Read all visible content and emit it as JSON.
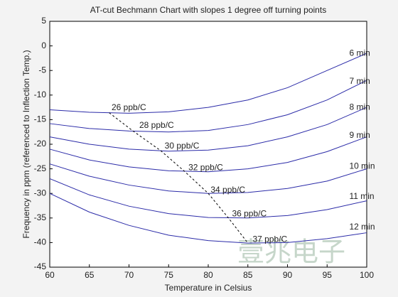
{
  "chart_data": {
    "type": "line",
    "title": "AT-cut Bechmann Chart with slopes 1 degree off turning points",
    "x_label": "Temperature in Celsius",
    "y_label": "Frequency in ppm (referenced to Inflection Temp.)",
    "x": [
      60,
      65,
      70,
      75,
      80,
      85,
      90,
      95,
      100
    ],
    "series": [
      {
        "name": "6 min",
        "color": "#2b2ba8",
        "values": [
          -13,
          -13.5,
          -13.7,
          -13.4,
          -12.5,
          -11,
          -8.5,
          -5,
          -1.5
        ]
      },
      {
        "name": "7 min",
        "color": "#2b2ba8",
        "values": [
          -15.8,
          -16.8,
          -17.3,
          -17.5,
          -17.2,
          -16,
          -14,
          -11,
          -7
        ]
      },
      {
        "name": "8 min",
        "color": "#2b2ba8",
        "values": [
          -18.5,
          -20,
          -21,
          -21.4,
          -21.2,
          -20.3,
          -18.5,
          -16,
          -12.5
        ]
      },
      {
        "name": "9 min",
        "color": "#2b2ba8",
        "values": [
          -21,
          -23.2,
          -24.6,
          -25.4,
          -25.6,
          -25,
          -23.7,
          -21.5,
          -18.5
        ]
      },
      {
        "name": "10 min",
        "color": "#2b2ba8",
        "values": [
          -24,
          -26.5,
          -28.3,
          -29.5,
          -30,
          -29.8,
          -29,
          -27.5,
          -25
        ]
      },
      {
        "name": "11 min",
        "color": "#2b2ba8",
        "values": [
          -27,
          -30.3,
          -32.6,
          -34.1,
          -34.9,
          -35,
          -34.5,
          -33.3,
          -31.5
        ]
      },
      {
        "name": "12 min",
        "color": "#2b2ba8",
        "values": [
          -30,
          -33.8,
          -36.5,
          -38.5,
          -39.6,
          -40.1,
          -40,
          -39.2,
          -38
        ]
      }
    ],
    "turning_line": {
      "color": "#000000",
      "x": [
        67.5,
        70.5,
        74,
        77,
        80,
        82.5,
        85
      ],
      "values": [
        -13.6,
        -17.3,
        -21.3,
        -25.5,
        -30,
        -34.9,
        -40.1
      ]
    },
    "annotations": [
      {
        "text": "26 ppb/C",
        "x": 67.8,
        "y": -12.6
      },
      {
        "text": "28 ppb/C",
        "x": 71.3,
        "y": -16.2
      },
      {
        "text": "30 ppb/C",
        "x": 74.5,
        "y": -20.4
      },
      {
        "text": "32 ppb/C",
        "x": 77.5,
        "y": -24.8
      },
      {
        "text": "34 ppb/C",
        "x": 80.3,
        "y": -29.4
      },
      {
        "text": "36 ppb/C",
        "x": 83,
        "y": -34.2
      },
      {
        "text": "37 ppb/C",
        "x": 85.6,
        "y": -39.4
      }
    ],
    "watermark": "壹兆电子",
    "xlim": [
      60,
      100
    ],
    "xticks": [
      60,
      65,
      70,
      75,
      80,
      85,
      90,
      95,
      100
    ],
    "ylim": [
      -45,
      5
    ],
    "yticks": [
      -45,
      -40,
      -35,
      -30,
      -25,
      -20,
      -15,
      -10,
      -5,
      0,
      5
    ],
    "grid": false
  }
}
